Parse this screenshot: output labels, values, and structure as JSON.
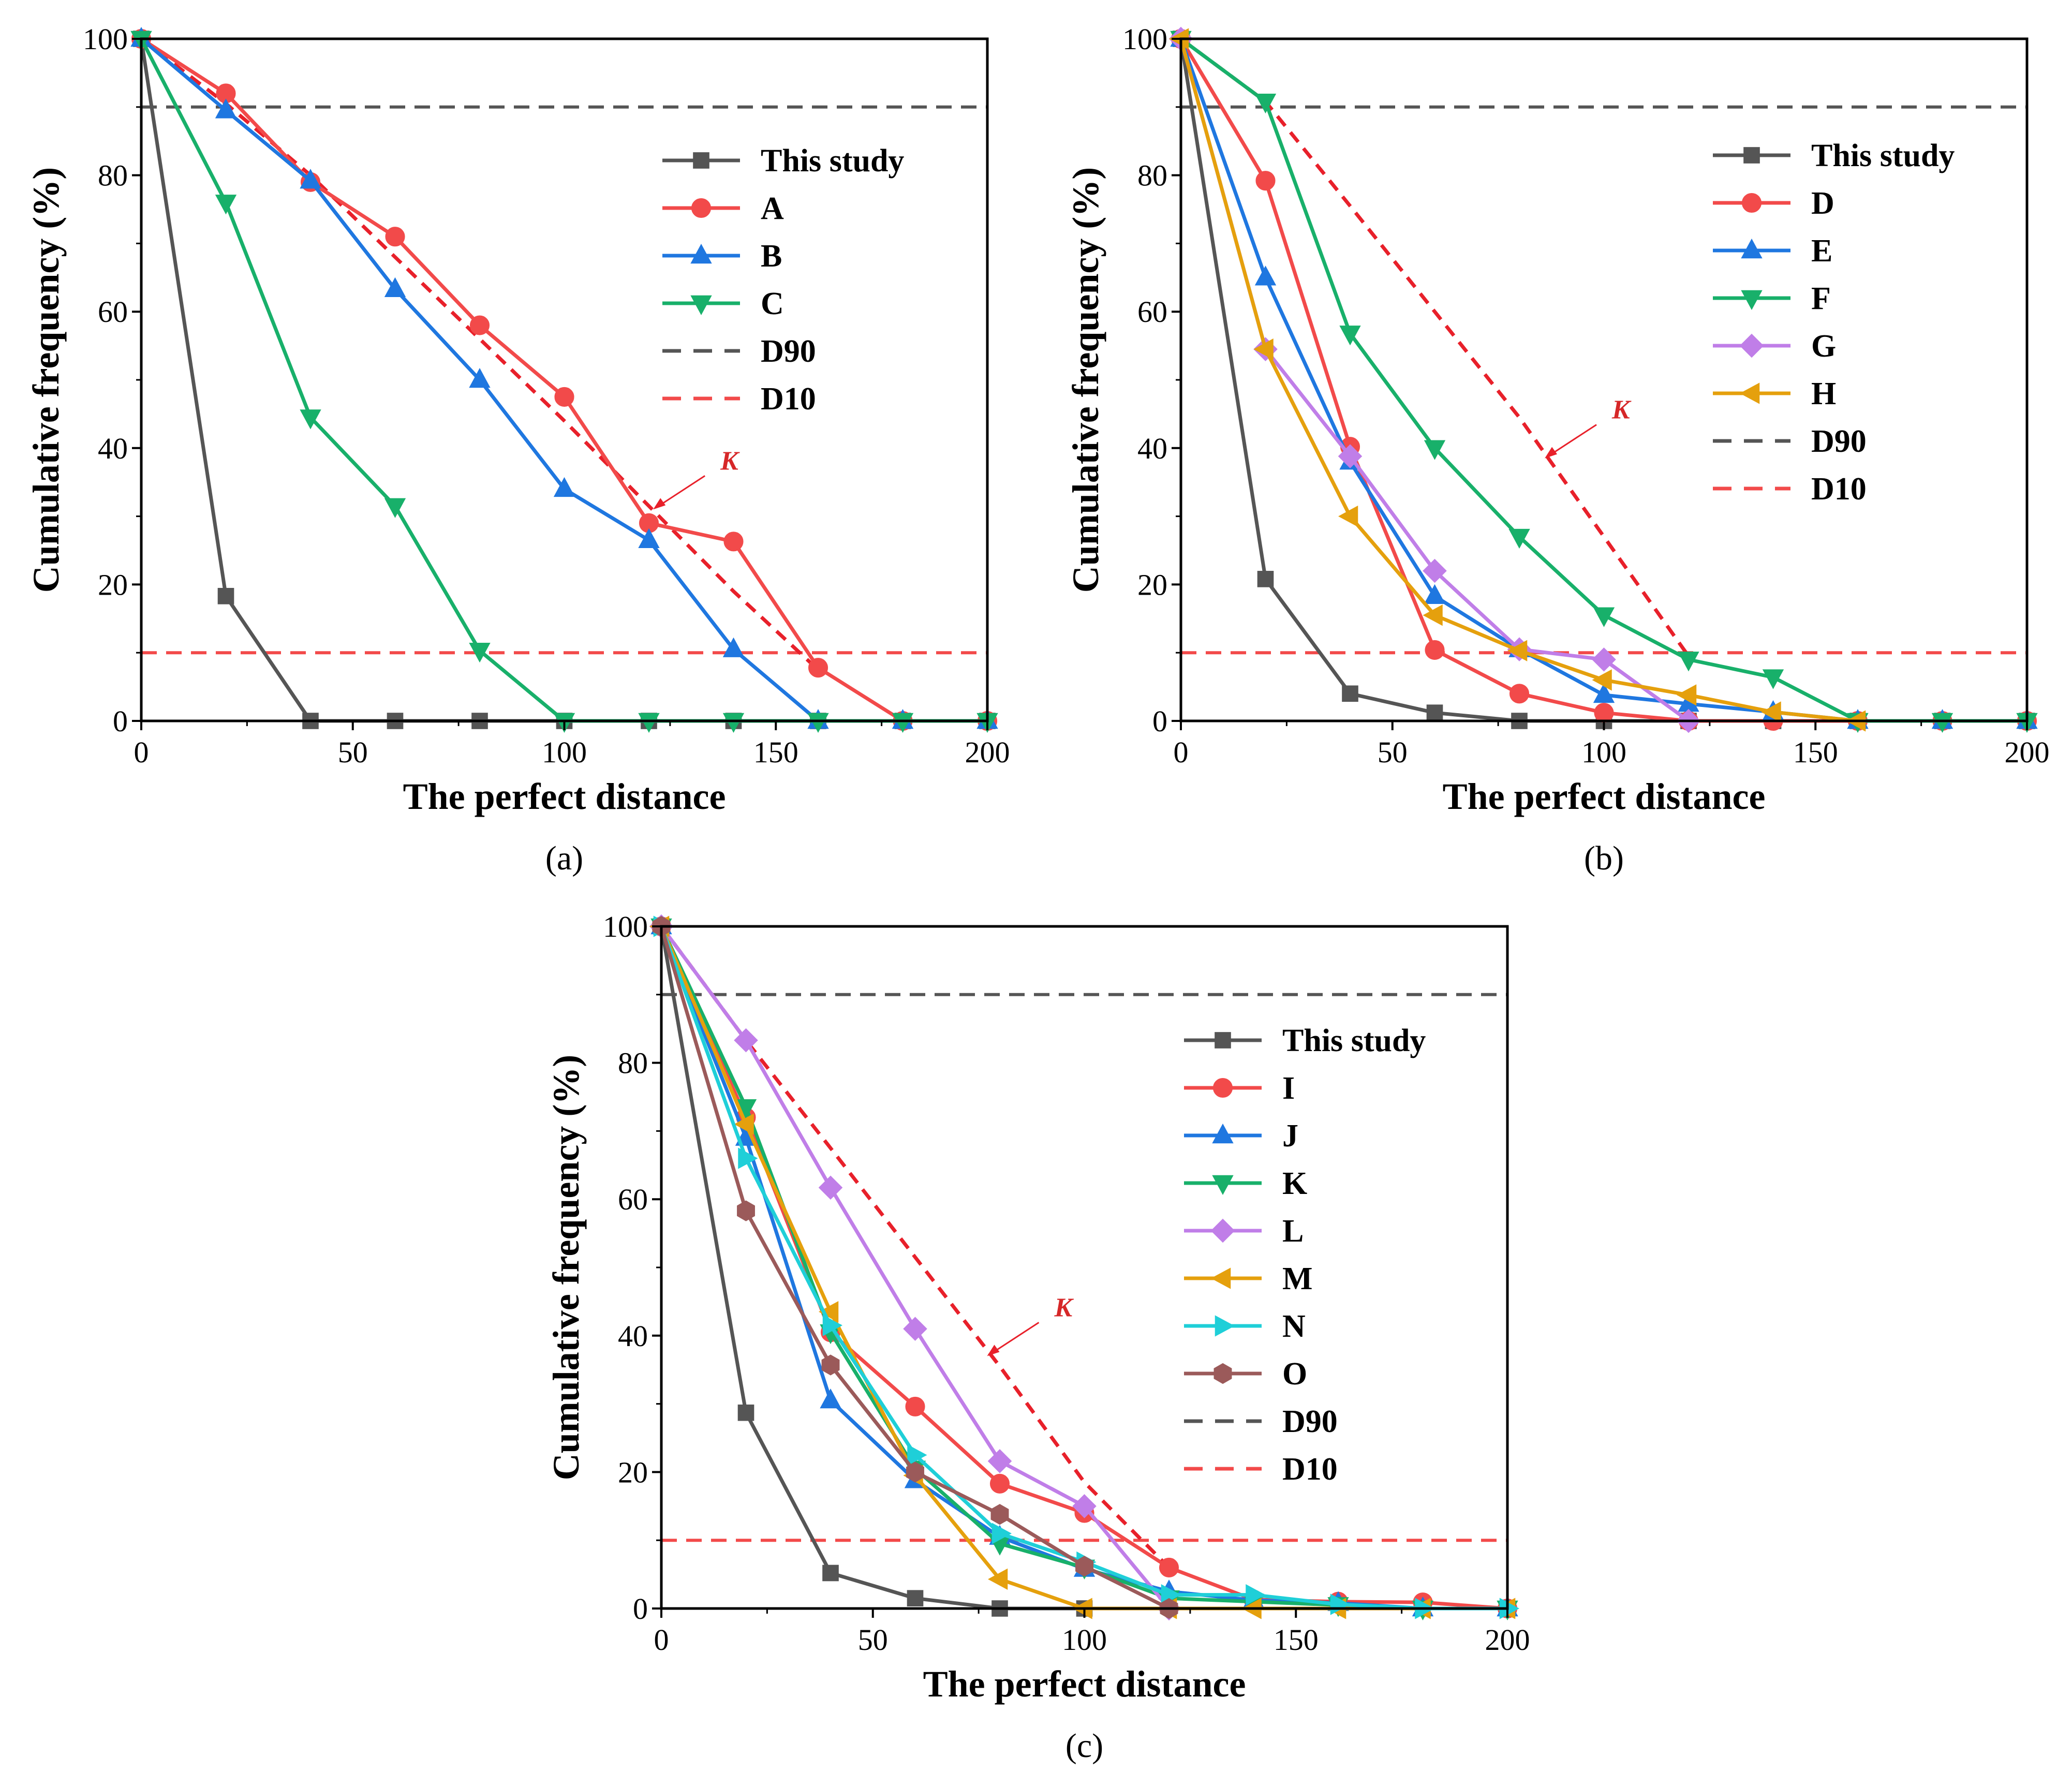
{
  "chart_data": [
    {
      "type": "line",
      "panel_label": "(a)",
      "xlabel": "The perfect distance",
      "ylabel": "Cumulative frequency (%)",
      "xlim": [
        0,
        200
      ],
      "ylim": [
        0,
        100
      ],
      "xticks": [
        0,
        50,
        100,
        150,
        200
      ],
      "yticks": [
        0,
        20,
        40,
        60,
        80,
        100
      ],
      "grid": false,
      "legend_position": "right",
      "series": [
        {
          "name": "This study",
          "color": "#555555",
          "marker": "square",
          "x": [
            0,
            20,
            40,
            60,
            80,
            100,
            120,
            140,
            160,
            180,
            200
          ],
          "y": [
            100,
            18.3,
            0,
            0,
            0,
            0,
            0,
            0,
            0,
            0,
            0
          ]
        },
        {
          "name": "A",
          "color": "#f24a4a",
          "marker": "circle",
          "x": [
            0,
            20,
            40,
            60,
            80,
            100,
            120,
            140,
            160,
            180,
            200
          ],
          "y": [
            100,
            92,
            79,
            71,
            58,
            47.5,
            29,
            26.3,
            7.8,
            0,
            0
          ]
        },
        {
          "name": "B",
          "color": "#1f77e0",
          "marker": "triangle-up",
          "x": [
            0,
            20,
            40,
            60,
            80,
            100,
            120,
            140,
            160,
            180,
            200
          ],
          "y": [
            100,
            89.5,
            79.2,
            63.3,
            50,
            34,
            26.5,
            10.5,
            0,
            0,
            0
          ]
        },
        {
          "name": "C",
          "color": "#18b06a",
          "marker": "triangle-down",
          "x": [
            0,
            20,
            40,
            60,
            80,
            100,
            120,
            140,
            160,
            180,
            200
          ],
          "y": [
            100,
            76,
            44.5,
            31.5,
            10.3,
            0,
            0,
            0,
            0,
            0,
            0
          ]
        }
      ],
      "reference_lines": [
        {
          "name": "D90",
          "color": "#555555",
          "y": 90
        },
        {
          "name": "D10",
          "color": "#f24a4a",
          "y": 10
        }
      ],
      "k_line": {
        "color": "#e8202a",
        "x": [
          0,
          20,
          40,
          60,
          80,
          100,
          120,
          140,
          160
        ],
        "y": [
          100,
          90.5,
          80,
          68,
          56,
          44,
          31.5,
          19,
          7.5
        ]
      },
      "annotation": {
        "text": "K",
        "arrow_target": [
          121,
          31
        ]
      }
    },
    {
      "type": "line",
      "panel_label": "(b)",
      "xlabel": "The perfect distance",
      "ylabel": "Cumulative frequency (%)",
      "xlim": [
        0,
        200
      ],
      "ylim": [
        0,
        100
      ],
      "xticks": [
        0,
        50,
        100,
        150,
        200
      ],
      "yticks": [
        0,
        20,
        40,
        60,
        80,
        100
      ],
      "grid": false,
      "legend_position": "right",
      "series": [
        {
          "name": "This study",
          "color": "#555555",
          "marker": "square",
          "x": [
            0,
            20,
            40,
            60,
            80,
            100,
            120,
            140,
            160,
            180,
            200
          ],
          "y": [
            100,
            20.8,
            4,
            1.2,
            0,
            0,
            0,
            0,
            0,
            0,
            0
          ]
        },
        {
          "name": "D",
          "color": "#f24a4a",
          "marker": "circle",
          "x": [
            0,
            20,
            40,
            60,
            80,
            100,
            120,
            140,
            160,
            180,
            200
          ],
          "y": [
            100,
            79.2,
            40.2,
            10.4,
            4,
            1.2,
            0,
            0,
            0,
            0,
            0
          ]
        },
        {
          "name": "E",
          "color": "#1f77e0",
          "marker": "triangle-up",
          "x": [
            0,
            20,
            40,
            60,
            80,
            100,
            120,
            140,
            160,
            180,
            200
          ],
          "y": [
            100,
            65,
            38,
            18.3,
            10.5,
            3.8,
            2.5,
            1.3,
            0,
            0,
            0
          ]
        },
        {
          "name": "F",
          "color": "#18b06a",
          "marker": "triangle-down",
          "x": [
            0,
            20,
            40,
            60,
            80,
            100,
            120,
            140,
            160,
            180,
            200
          ],
          "y": [
            100,
            90.8,
            56.8,
            40,
            27,
            15.5,
            9,
            6.4,
            0,
            0,
            0
          ]
        },
        {
          "name": "G",
          "color": "#c07ee8",
          "marker": "diamond",
          "x": [
            0,
            20,
            40,
            60,
            80,
            100,
            120
          ],
          "y": [
            100,
            54.5,
            38.8,
            22,
            10.5,
            9,
            0
          ]
        },
        {
          "name": "H",
          "color": "#e5a00d",
          "marker": "triangle-left",
          "x": [
            0,
            20,
            40,
            60,
            80,
            100,
            120,
            140,
            160
          ],
          "y": [
            100,
            54.5,
            30,
            15.5,
            10.3,
            6,
            3.8,
            1.3,
            0
          ]
        }
      ],
      "reference_lines": [
        {
          "name": "D90",
          "color": "#555555",
          "y": 90
        },
        {
          "name": "D10",
          "color": "#f24a4a",
          "y": 10
        }
      ],
      "k_line": {
        "color": "#e8202a",
        "x": [
          0,
          20,
          40,
          60,
          80,
          100,
          120
        ],
        "y": [
          100,
          90.8,
          75.5,
          60,
          44.5,
          27,
          9.5
        ]
      },
      "annotation": {
        "text": "K",
        "arrow_target": [
          86,
          38.5
        ]
      }
    },
    {
      "type": "line",
      "panel_label": "(c)",
      "xlabel": "The perfect distance",
      "ylabel": "Cumulative frequency (%)",
      "xlim": [
        0,
        200
      ],
      "ylim": [
        0,
        100
      ],
      "xticks": [
        0,
        50,
        100,
        150,
        200
      ],
      "yticks": [
        0,
        20,
        40,
        60,
        80,
        100
      ],
      "grid": false,
      "legend_position": "right",
      "series": [
        {
          "name": "This study",
          "color": "#555555",
          "marker": "square",
          "x": [
            0,
            20,
            40,
            60,
            80,
            100
          ],
          "y": [
            100,
            28.7,
            5.2,
            1.5,
            0,
            0
          ]
        },
        {
          "name": "I",
          "color": "#f24a4a",
          "marker": "circle",
          "x": [
            0,
            20,
            40,
            60,
            80,
            100,
            120,
            140,
            160,
            180,
            200
          ],
          "y": [
            100,
            72,
            40.5,
            29.6,
            18.3,
            14,
            6,
            1.3,
            1,
            0.9,
            0
          ]
        },
        {
          "name": "J",
          "color": "#1f77e0",
          "marker": "triangle-up",
          "x": [
            0,
            20,
            40,
            60,
            80,
            100,
            120,
            140,
            160,
            180,
            200
          ],
          "y": [
            100,
            69,
            30.5,
            18.8,
            10.5,
            5.8,
            2.5,
            1.2,
            0.8,
            0,
            0
          ]
        },
        {
          "name": "K",
          "color": "#18b06a",
          "marker": "triangle-down",
          "x": [
            0,
            20,
            40,
            60,
            80,
            100,
            120,
            140,
            160,
            180,
            200
          ],
          "y": [
            100,
            73.5,
            40.5,
            20.5,
            9.5,
            6,
            1.5,
            1,
            0.5,
            0,
            0
          ]
        },
        {
          "name": "L",
          "color": "#c07ee8",
          "marker": "diamond",
          "x": [
            0,
            20,
            40,
            60,
            80,
            100,
            120
          ],
          "y": [
            100,
            83.3,
            61.7,
            41,
            21.6,
            15,
            0
          ]
        },
        {
          "name": "M",
          "color": "#e5a00d",
          "marker": "triangle-left",
          "x": [
            0,
            20,
            40,
            60,
            80,
            100,
            120,
            140,
            160,
            180,
            200
          ],
          "y": [
            100,
            71,
            43.5,
            19.5,
            4.3,
            0,
            0,
            0,
            0,
            0,
            0
          ]
        },
        {
          "name": "N",
          "color": "#1fcfd8",
          "marker": "triangle-right",
          "x": [
            0,
            20,
            40,
            60,
            80,
            100,
            120,
            140,
            160,
            180,
            200
          ],
          "y": [
            100,
            66,
            41.5,
            22.5,
            11,
            6.8,
            2,
            2,
            0.6,
            0,
            0
          ]
        },
        {
          "name": "O",
          "color": "#9b5a5a",
          "marker": "hexagon",
          "x": [
            0,
            20,
            40,
            60,
            80,
            100,
            120
          ],
          "y": [
            100,
            58.3,
            35.7,
            20,
            13.8,
            6.2,
            0
          ]
        }
      ],
      "reference_lines": [
        {
          "name": "D90",
          "color": "#555555",
          "y": 90
        },
        {
          "name": "D10",
          "color": "#f24a4a",
          "y": 10
        }
      ],
      "k_line": {
        "color": "#e8202a",
        "x": [
          0,
          20,
          40,
          60,
          80,
          100,
          120
        ],
        "y": [
          100,
          83.3,
          67.5,
          51.5,
          35.5,
          18.5,
          6
        ]
      },
      "annotation": {
        "text": "K",
        "arrow_target": [
          77,
          37
        ]
      }
    }
  ]
}
